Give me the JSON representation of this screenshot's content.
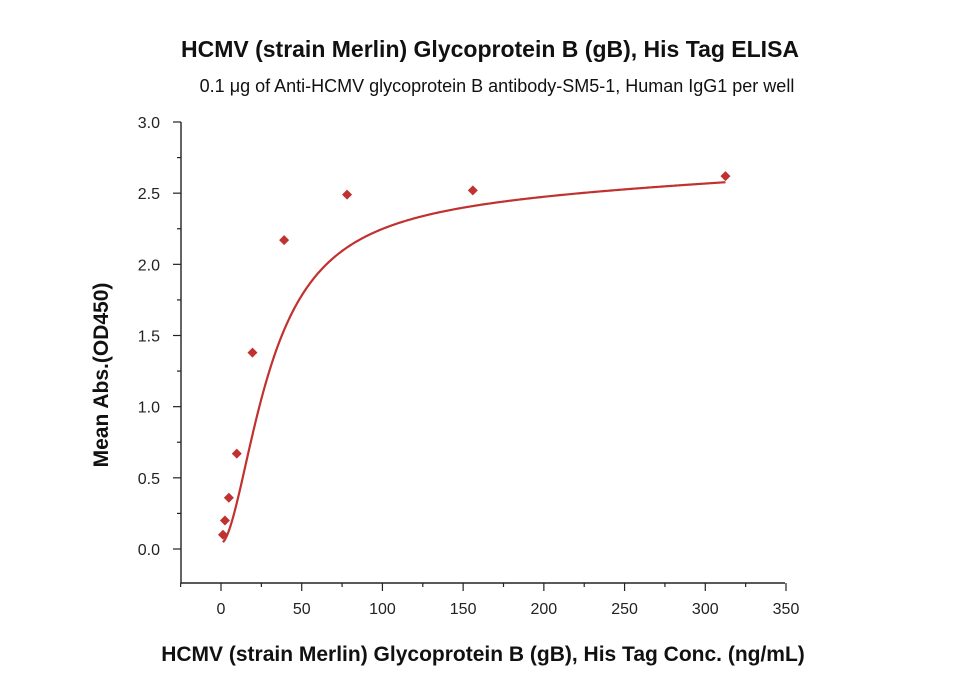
{
  "chart_data": {
    "type": "scatter",
    "title": "HCMV (strain Merlin) Glycoprotein B (gB), His Tag ELISA",
    "subtitle": "0.1 μg of Anti-HCMV glycoprotein B antibody-SM5-1, Human IgG1 per well",
    "xlabel": "HCMV (strain Merlin) Glycoprotein B (gB), His Tag Conc. (ng/mL)",
    "ylabel": "Mean Abs.(OD450)",
    "xlim": [
      -25,
      350
    ],
    "ylim": [
      -0.25,
      3.0
    ],
    "x_ticks": [
      0,
      50,
      100,
      150,
      200,
      250,
      300,
      350
    ],
    "y_ticks": [
      0.0,
      0.5,
      1.0,
      1.5,
      2.0,
      2.5,
      3.0
    ],
    "x_tick_labels": [
      "0",
      "50",
      "100",
      "150",
      "200",
      "250",
      "300",
      "350"
    ],
    "y_tick_labels": [
      "0.0",
      "0.5",
      "1.0",
      "1.5",
      "2.0",
      "2.5",
      "3.0"
    ],
    "grid": false,
    "series": [
      {
        "marker": "diamond",
        "color": "#c0312f",
        "x": [
          1.22,
          2.44,
          4.88,
          9.77,
          19.5,
          39.1,
          78.1,
          156,
          312.5
        ],
        "y": [
          0.1,
          0.2,
          0.36,
          0.67,
          1.38,
          2.17,
          2.49,
          2.52,
          2.62
        ],
        "fit_curve": "sigmoidal"
      }
    ]
  }
}
